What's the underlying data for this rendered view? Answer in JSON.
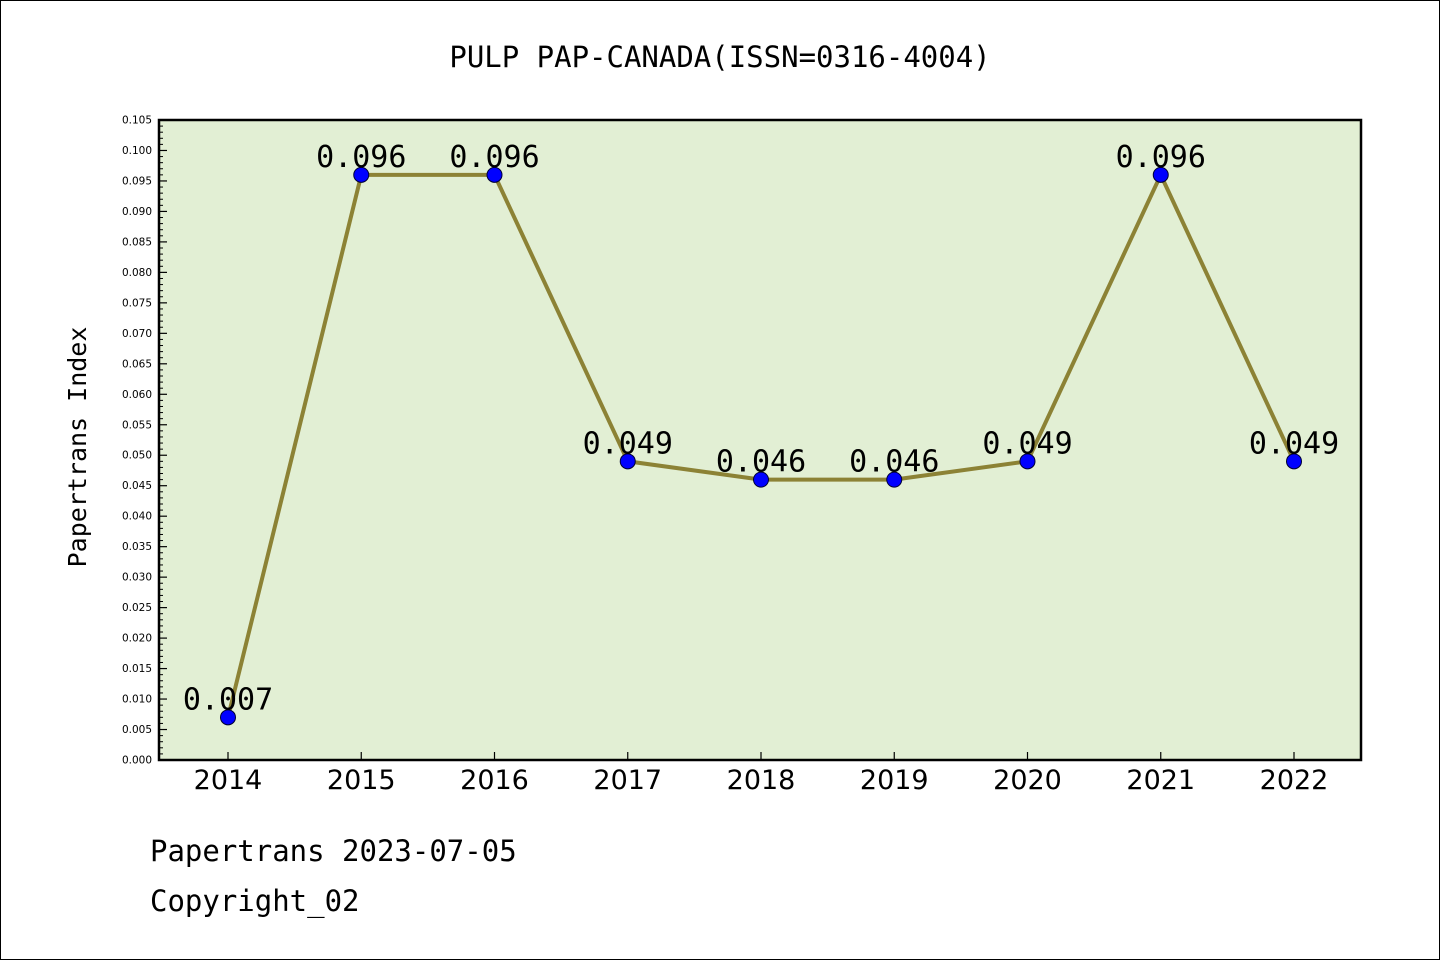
{
  "chart_data": {
    "type": "line",
    "title": "PULP PAP-CANADA(ISSN=0316-4004)",
    "xlabel": "",
    "ylabel": "Papertrans Index",
    "x": [
      "2014",
      "2015",
      "2016",
      "2017",
      "2018",
      "2019",
      "2020",
      "2021",
      "2022"
    ],
    "values": [
      0.007,
      0.096,
      0.096,
      0.049,
      0.046,
      0.046,
      0.049,
      0.096,
      0.049
    ],
    "value_labels": [
      "0.007",
      "0.096",
      "0.096",
      "0.049",
      "0.046",
      "0.046",
      "0.049",
      "0.096",
      "0.049"
    ],
    "ylim": [
      0,
      0.105
    ],
    "yticks": [
      "0.000",
      "0.005",
      "0.010",
      "0.015",
      "0.020",
      "0.025",
      "0.030",
      "0.035",
      "0.040",
      "0.045",
      "0.050",
      "0.055",
      "0.060",
      "0.065",
      "0.070",
      "0.075",
      "0.080",
      "0.085",
      "0.090",
      "0.095",
      "0.100",
      "0.105"
    ],
    "grid": false,
    "colors": {
      "plot_bg": "#e2efd4",
      "line": "#8c8235",
      "marker": "#0000ff"
    }
  },
  "footer": {
    "date_line": "Papertrans 2023-07-05",
    "copyright": "Copyright_02"
  }
}
